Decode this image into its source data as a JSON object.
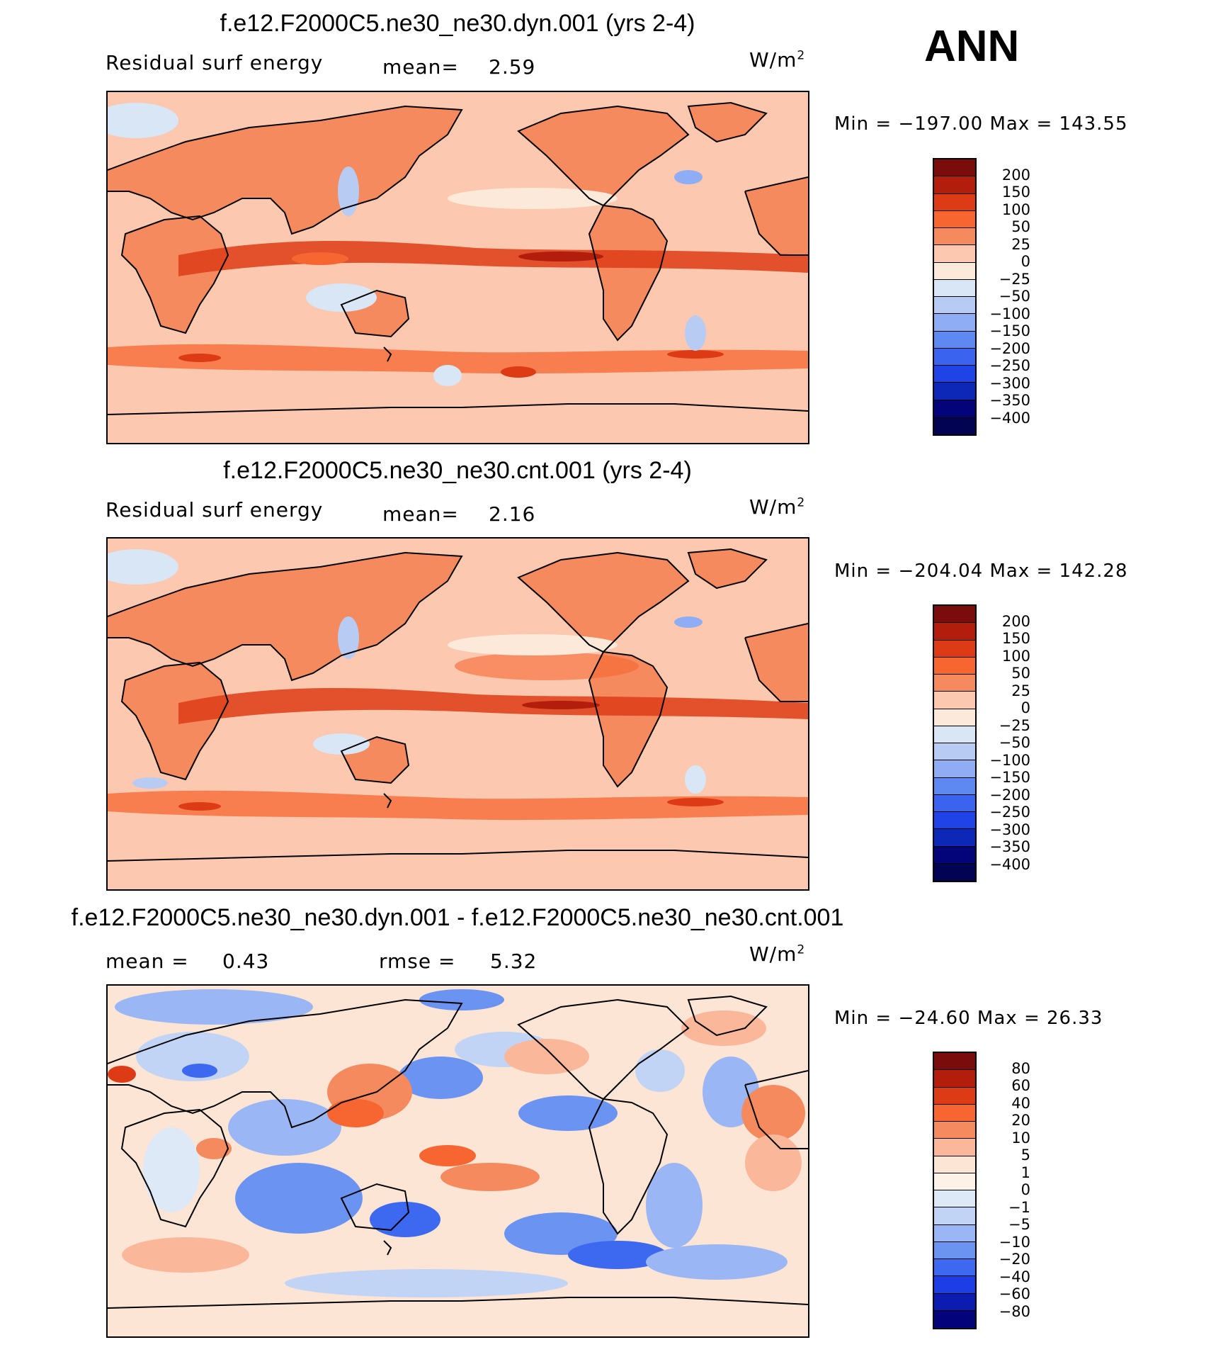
{
  "season": "ANN",
  "panels": [
    {
      "title": "f.e12.F2000C5.ne30_ne30.dyn.001 (yrs 2-4)",
      "left_label": "Residual surf energy",
      "mid_label": "mean=",
      "mid_value": "2.59",
      "units": "W/m",
      "units_sup": "2",
      "minmax": "Min = −197.00 Max = 143.55",
      "colorbar_labels": [
        "200",
        "150",
        "100",
        "50",
        "25",
        "0",
        "−25",
        "−50",
        "−100",
        "−150",
        "−200",
        "−250",
        "−300",
        "−350",
        "−400"
      ]
    },
    {
      "title": "f.e12.F2000C5.ne30_ne30.cnt.001 (yrs 2-4)",
      "left_label": "Residual surf energy",
      "mid_label": "mean=",
      "mid_value": "2.16",
      "units": "W/m",
      "units_sup": "2",
      "minmax": "Min = −204.04 Max = 142.28",
      "colorbar_labels": [
        "200",
        "150",
        "100",
        "50",
        "25",
        "0",
        "−25",
        "−50",
        "−100",
        "−150",
        "−200",
        "−250",
        "−300",
        "−350",
        "−400"
      ]
    },
    {
      "title": "f.e12.F2000C5.ne30_ne30.dyn.001 - f.e12.F2000C5.ne30_ne30.cnt.001",
      "left_label": "mean =",
      "left_value": "0.43",
      "mid_label": "rmse =",
      "mid_value": "5.32",
      "units": "W/m",
      "units_sup": "2",
      "minmax": "Min = −24.60 Max =  26.33",
      "colorbar_labels": [
        "80",
        "60",
        "40",
        "20",
        "10",
        "5",
        "1",
        "0",
        "−1",
        "−5",
        "−10",
        "−20",
        "−40",
        "−60",
        "−80"
      ]
    }
  ],
  "colors": {
    "abs_scale": [
      "#7a0c0c",
      "#b21d0c",
      "#dd3b15",
      "#f76530",
      "#f58a5e",
      "#fcc8b0",
      "#fde9d9",
      "#d8e6f5",
      "#b8ccf3",
      "#8fadf5",
      "#5e89f2",
      "#3a64f0",
      "#1f43e6",
      "#0d27b6",
      "#04047a",
      "#030353"
    ],
    "diff_scale": [
      "#7a0c0c",
      "#b21d0c",
      "#dd3b15",
      "#f76530",
      "#f58a5e",
      "#fbb79a",
      "#fde5d5",
      "#fdf2e8",
      "#dde9f6",
      "#c2d4f5",
      "#9ab6f5",
      "#6b93f2",
      "#3c69f0",
      "#1d3de6",
      "#0c1cb0",
      "#04047a"
    ],
    "ocean_abs": "#fcc8b0",
    "land_abs": "#f58a5e",
    "ocean_diff": "#fde5d5"
  },
  "map": {
    "projection": "cylindrical equidistant, 0°–360° E",
    "coastlines": "black"
  }
}
